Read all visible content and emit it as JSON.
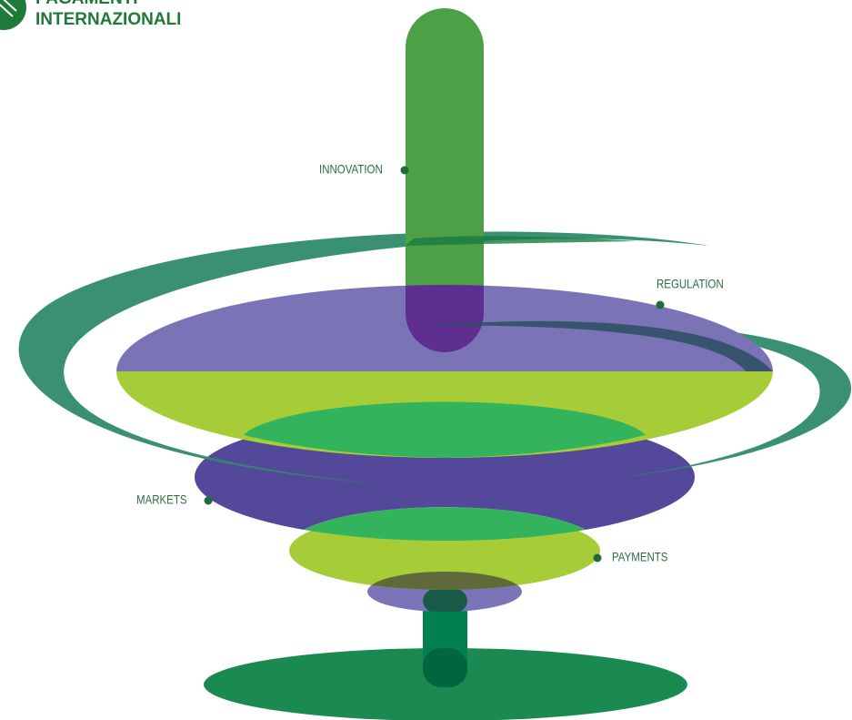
{
  "logo": {
    "line1": "PAGAMENTI",
    "line2": "INTERNAZIONALI"
  },
  "labels": [
    "INNOVATION",
    "REGULATION",
    "MARKETS",
    "PAYMENTS"
  ]
}
